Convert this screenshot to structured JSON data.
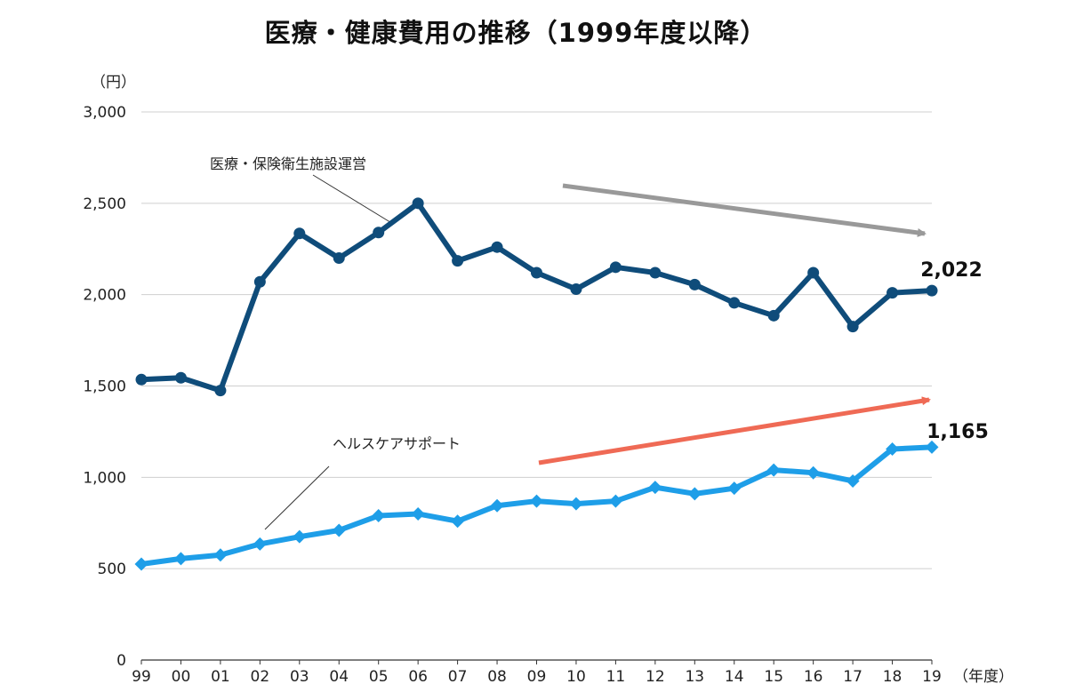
{
  "title": "医療・健康費用の推移（1999年度以降）",
  "chart_data": {
    "type": "line",
    "title": "医療・健康費用の推移（1999年度以降）",
    "y_unit_label": "（円）",
    "x_unit_label": "（年度）",
    "ylim": [
      0,
      3000
    ],
    "y_ticks": [
      "0",
      "500",
      "1,000",
      "1,500",
      "2,000",
      "2,500",
      "3,000"
    ],
    "y_tick_values": [
      0,
      500,
      1000,
      1500,
      2000,
      2500,
      3000
    ],
    "grid": true,
    "categories": [
      "99",
      "00",
      "01",
      "02",
      "03",
      "04",
      "05",
      "06",
      "07",
      "08",
      "09",
      "10",
      "11",
      "12",
      "13",
      "14",
      "15",
      "16",
      "17",
      "18",
      "19"
    ],
    "series": [
      {
        "name": "医療・保険衛生施設運営",
        "color": "#0f4c7a",
        "marker": "circle",
        "values": [
          1535,
          1545,
          1475,
          2070,
          2335,
          2200,
          2340,
          2500,
          2185,
          2260,
          2120,
          2030,
          2150,
          2120,
          2055,
          1955,
          1885,
          2120,
          1825,
          2010,
          2022
        ]
      },
      {
        "name": "ヘルスケアサポート",
        "color": "#1e9ee8",
        "marker": "diamond",
        "values": [
          525,
          555,
          575,
          635,
          675,
          710,
          790,
          800,
          760,
          845,
          870,
          855,
          870,
          945,
          910,
          940,
          1040,
          1025,
          980,
          1155,
          1165
        ]
      }
    ],
    "end_labels": [
      "2,022",
      "1,165"
    ],
    "trend_arrows": [
      {
        "series": "医療・保険衛生施設運営",
        "direction": "down",
        "color": "#999999"
      },
      {
        "series": "ヘルスケアサポート",
        "direction": "up",
        "color": "#ef6a55"
      }
    ]
  }
}
